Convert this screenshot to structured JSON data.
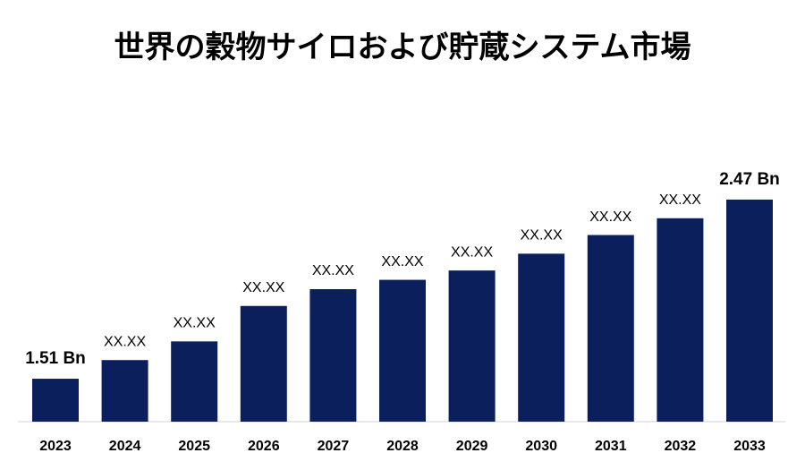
{
  "chart_data": {
    "type": "bar",
    "title": "世界の穀物サイロおよび貯蔵システム市場",
    "categories": [
      "2023",
      "2024",
      "2025",
      "2026",
      "2027",
      "2028",
      "2029",
      "2030",
      "2031",
      "2032",
      "2033"
    ],
    "values": [
      1.51,
      1.61,
      1.71,
      1.9,
      1.99,
      2.04,
      2.09,
      2.18,
      2.28,
      2.37,
      2.47
    ],
    "value_labels": [
      "1.51 Bn",
      "XX.XX",
      "XX.XX",
      "XX.XX",
      "XX.XX",
      "XX.XX",
      "XX.XX",
      "XX.XX",
      "XX.XX",
      "XX.XX",
      "2.47 Bn"
    ],
    "color": "#0a1f5c",
    "ylim": [
      1.28,
      2.58
    ]
  }
}
